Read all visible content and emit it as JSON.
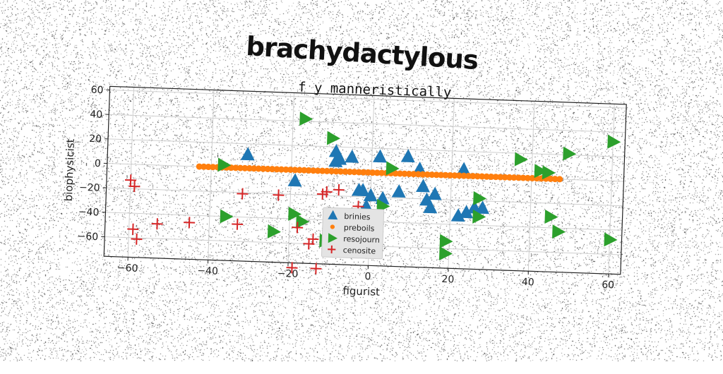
{
  "header": {
    "title": "brachydactylous"
  },
  "chart_data": {
    "type": "scatter",
    "subtitle": "f y manneristically",
    "xlabel": "figurist",
    "ylabel": "biophysicist",
    "xlim": [
      -66,
      63
    ],
    "ylim": [
      -76,
      63
    ],
    "xticks": [
      -60,
      -40,
      -20,
      0,
      20,
      40,
      60
    ],
    "yticks": [
      -60,
      -40,
      -20,
      0,
      20,
      40,
      60
    ],
    "grid": true,
    "legend_position": "lower-center",
    "series": [
      {
        "name": "brinies",
        "marker": "triangle-up",
        "color": "#1f77b4",
        "points": [
          [
            -31,
            11
          ],
          [
            -19,
            -9
          ],
          [
            -9,
            -41
          ],
          [
            -9,
            16
          ],
          [
            -9,
            8
          ],
          [
            -8,
            10
          ],
          [
            -5,
            12
          ],
          [
            -3,
            -15
          ],
          [
            -2,
            -15
          ],
          [
            -1,
            -28
          ],
          [
            0,
            -19
          ],
          [
            2,
            13
          ],
          [
            3,
            -21
          ],
          [
            7,
            -15
          ],
          [
            9,
            14
          ],
          [
            12,
            4
          ],
          [
            13,
            -10
          ],
          [
            14,
            -21
          ],
          [
            15,
            -27
          ],
          [
            16,
            -16
          ],
          [
            22,
            -33
          ],
          [
            23,
            5
          ],
          [
            24,
            -30
          ],
          [
            26,
            -26
          ],
          [
            28,
            -26
          ]
        ]
      },
      {
        "name": "preboils",
        "marker": "circle",
        "color": "#ff7f0e",
        "points": "generated"
      },
      {
        "name": "resojourn",
        "marker": "triangle-right",
        "color": "#2ca02c",
        "points": [
          [
            -17,
            42
          ],
          [
            -10,
            27
          ],
          [
            5,
            4
          ],
          [
            -37,
            2
          ],
          [
            -36,
            -40
          ],
          [
            -24,
            -51
          ],
          [
            -19,
            -36
          ],
          [
            -17,
            -42
          ],
          [
            -11,
            -57
          ],
          [
            1,
            -41
          ],
          [
            3,
            -27
          ],
          [
            19,
            -54
          ],
          [
            19,
            -64
          ],
          [
            27,
            -33
          ],
          [
            27,
            -18
          ],
          [
            37,
            15
          ],
          [
            42,
            6
          ],
          [
            44,
            5
          ],
          [
            45,
            -31
          ],
          [
            47,
            -43
          ],
          [
            49,
            21
          ],
          [
            60,
            -48
          ],
          [
            60,
            32
          ]
        ]
      },
      {
        "name": "cenosite",
        "marker": "plus",
        "color": "#d62728",
        "points": [
          [
            -60,
            -13
          ],
          [
            -59,
            -18
          ],
          [
            -59,
            -53
          ],
          [
            -58,
            -61
          ],
          [
            -53,
            -48
          ],
          [
            -45,
            -46
          ],
          [
            -33,
            -46
          ],
          [
            -32,
            -21
          ],
          [
            -23,
            -21
          ],
          [
            -18,
            -47
          ],
          [
            -19,
            -80
          ],
          [
            -15,
            -60
          ],
          [
            -14,
            -56
          ],
          [
            -13,
            -80
          ],
          [
            -12,
            -19
          ],
          [
            -11,
            -17
          ],
          [
            -8,
            -15
          ],
          [
            -3,
            -28
          ]
        ]
      }
    ],
    "preboils_generator": {
      "x_start": -43,
      "x_end": 47,
      "count": 80,
      "y_start": 0,
      "y_end": 0
    }
  }
}
